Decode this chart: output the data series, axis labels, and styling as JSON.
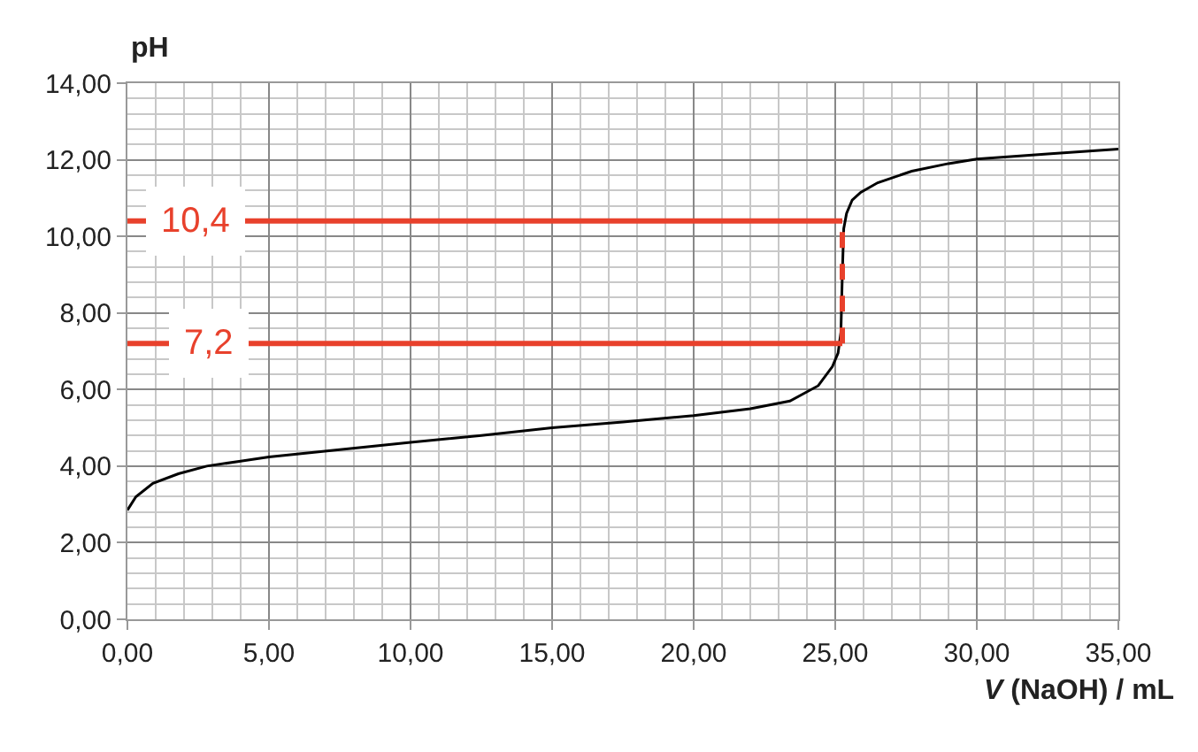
{
  "chart_data": {
    "type": "line",
    "xlabel": "V (NaOH) / mL",
    "ylabel": "pH",
    "xlim": [
      0,
      35
    ],
    "ylim": [
      0,
      14
    ],
    "xticks": [
      {
        "value": 0,
        "label": "0,00"
      },
      {
        "value": 5,
        "label": "5,00"
      },
      {
        "value": 10,
        "label": "10,00"
      },
      {
        "value": 15,
        "label": "15,00"
      },
      {
        "value": 20,
        "label": "20,00"
      },
      {
        "value": 25,
        "label": "25,00"
      },
      {
        "value": 30,
        "label": "30,00"
      },
      {
        "value": 35,
        "label": "35,00"
      }
    ],
    "yticks": [
      {
        "value": 0,
        "label": "0,00"
      },
      {
        "value": 2,
        "label": "2,00"
      },
      {
        "value": 4,
        "label": "4,00"
      },
      {
        "value": 6,
        "label": "6,00"
      },
      {
        "value": 8,
        "label": "8,00"
      },
      {
        "value": 10,
        "label": "10,00"
      },
      {
        "value": 12,
        "label": "12,00"
      },
      {
        "value": 14,
        "label": "14,00"
      }
    ],
    "grid": true,
    "marker": "none",
    "series": [
      {
        "color": "#000000",
        "line_style": "solid",
        "x": [
          0,
          0.3,
          0.9,
          1.8,
          2.8,
          4,
          5,
          7.5,
          10,
          12.5,
          15,
          17.5,
          20,
          22,
          23.4,
          24.4,
          24.9,
          25.1,
          25.2,
          25.25,
          25.3,
          25.4,
          25.6,
          25.9,
          26.5,
          27.7,
          29,
          30,
          32.5,
          35
        ],
        "values": [
          2.85,
          3.2,
          3.55,
          3.8,
          4.0,
          4.13,
          4.24,
          4.43,
          4.62,
          4.8,
          5.0,
          5.15,
          5.32,
          5.5,
          5.7,
          6.1,
          6.6,
          6.95,
          7.5,
          9.0,
          10.2,
          10.6,
          10.95,
          11.15,
          11.4,
          11.7,
          11.9,
          12.02,
          12.15,
          12.28
        ]
      },
      {
        "color": "#e8412c",
        "line_style": "solid",
        "x": [
          0,
          25.25
        ],
        "values": [
          10.4,
          10.4
        ]
      },
      {
        "color": "#e8412c",
        "line_style": "solid",
        "x": [
          0,
          25.25
        ],
        "values": [
          7.2,
          7.2
        ]
      },
      {
        "color": "#e8412c",
        "line_style": "dashed",
        "x": [
          25.25,
          25.25
        ],
        "values": [
          7.2,
          10.4
        ]
      }
    ],
    "annotations": [
      {
        "text": "10,4",
        "x": 2.4,
        "y": 10.4
      },
      {
        "text": "7,2",
        "x": 2.9,
        "y": 7.2
      }
    ]
  }
}
